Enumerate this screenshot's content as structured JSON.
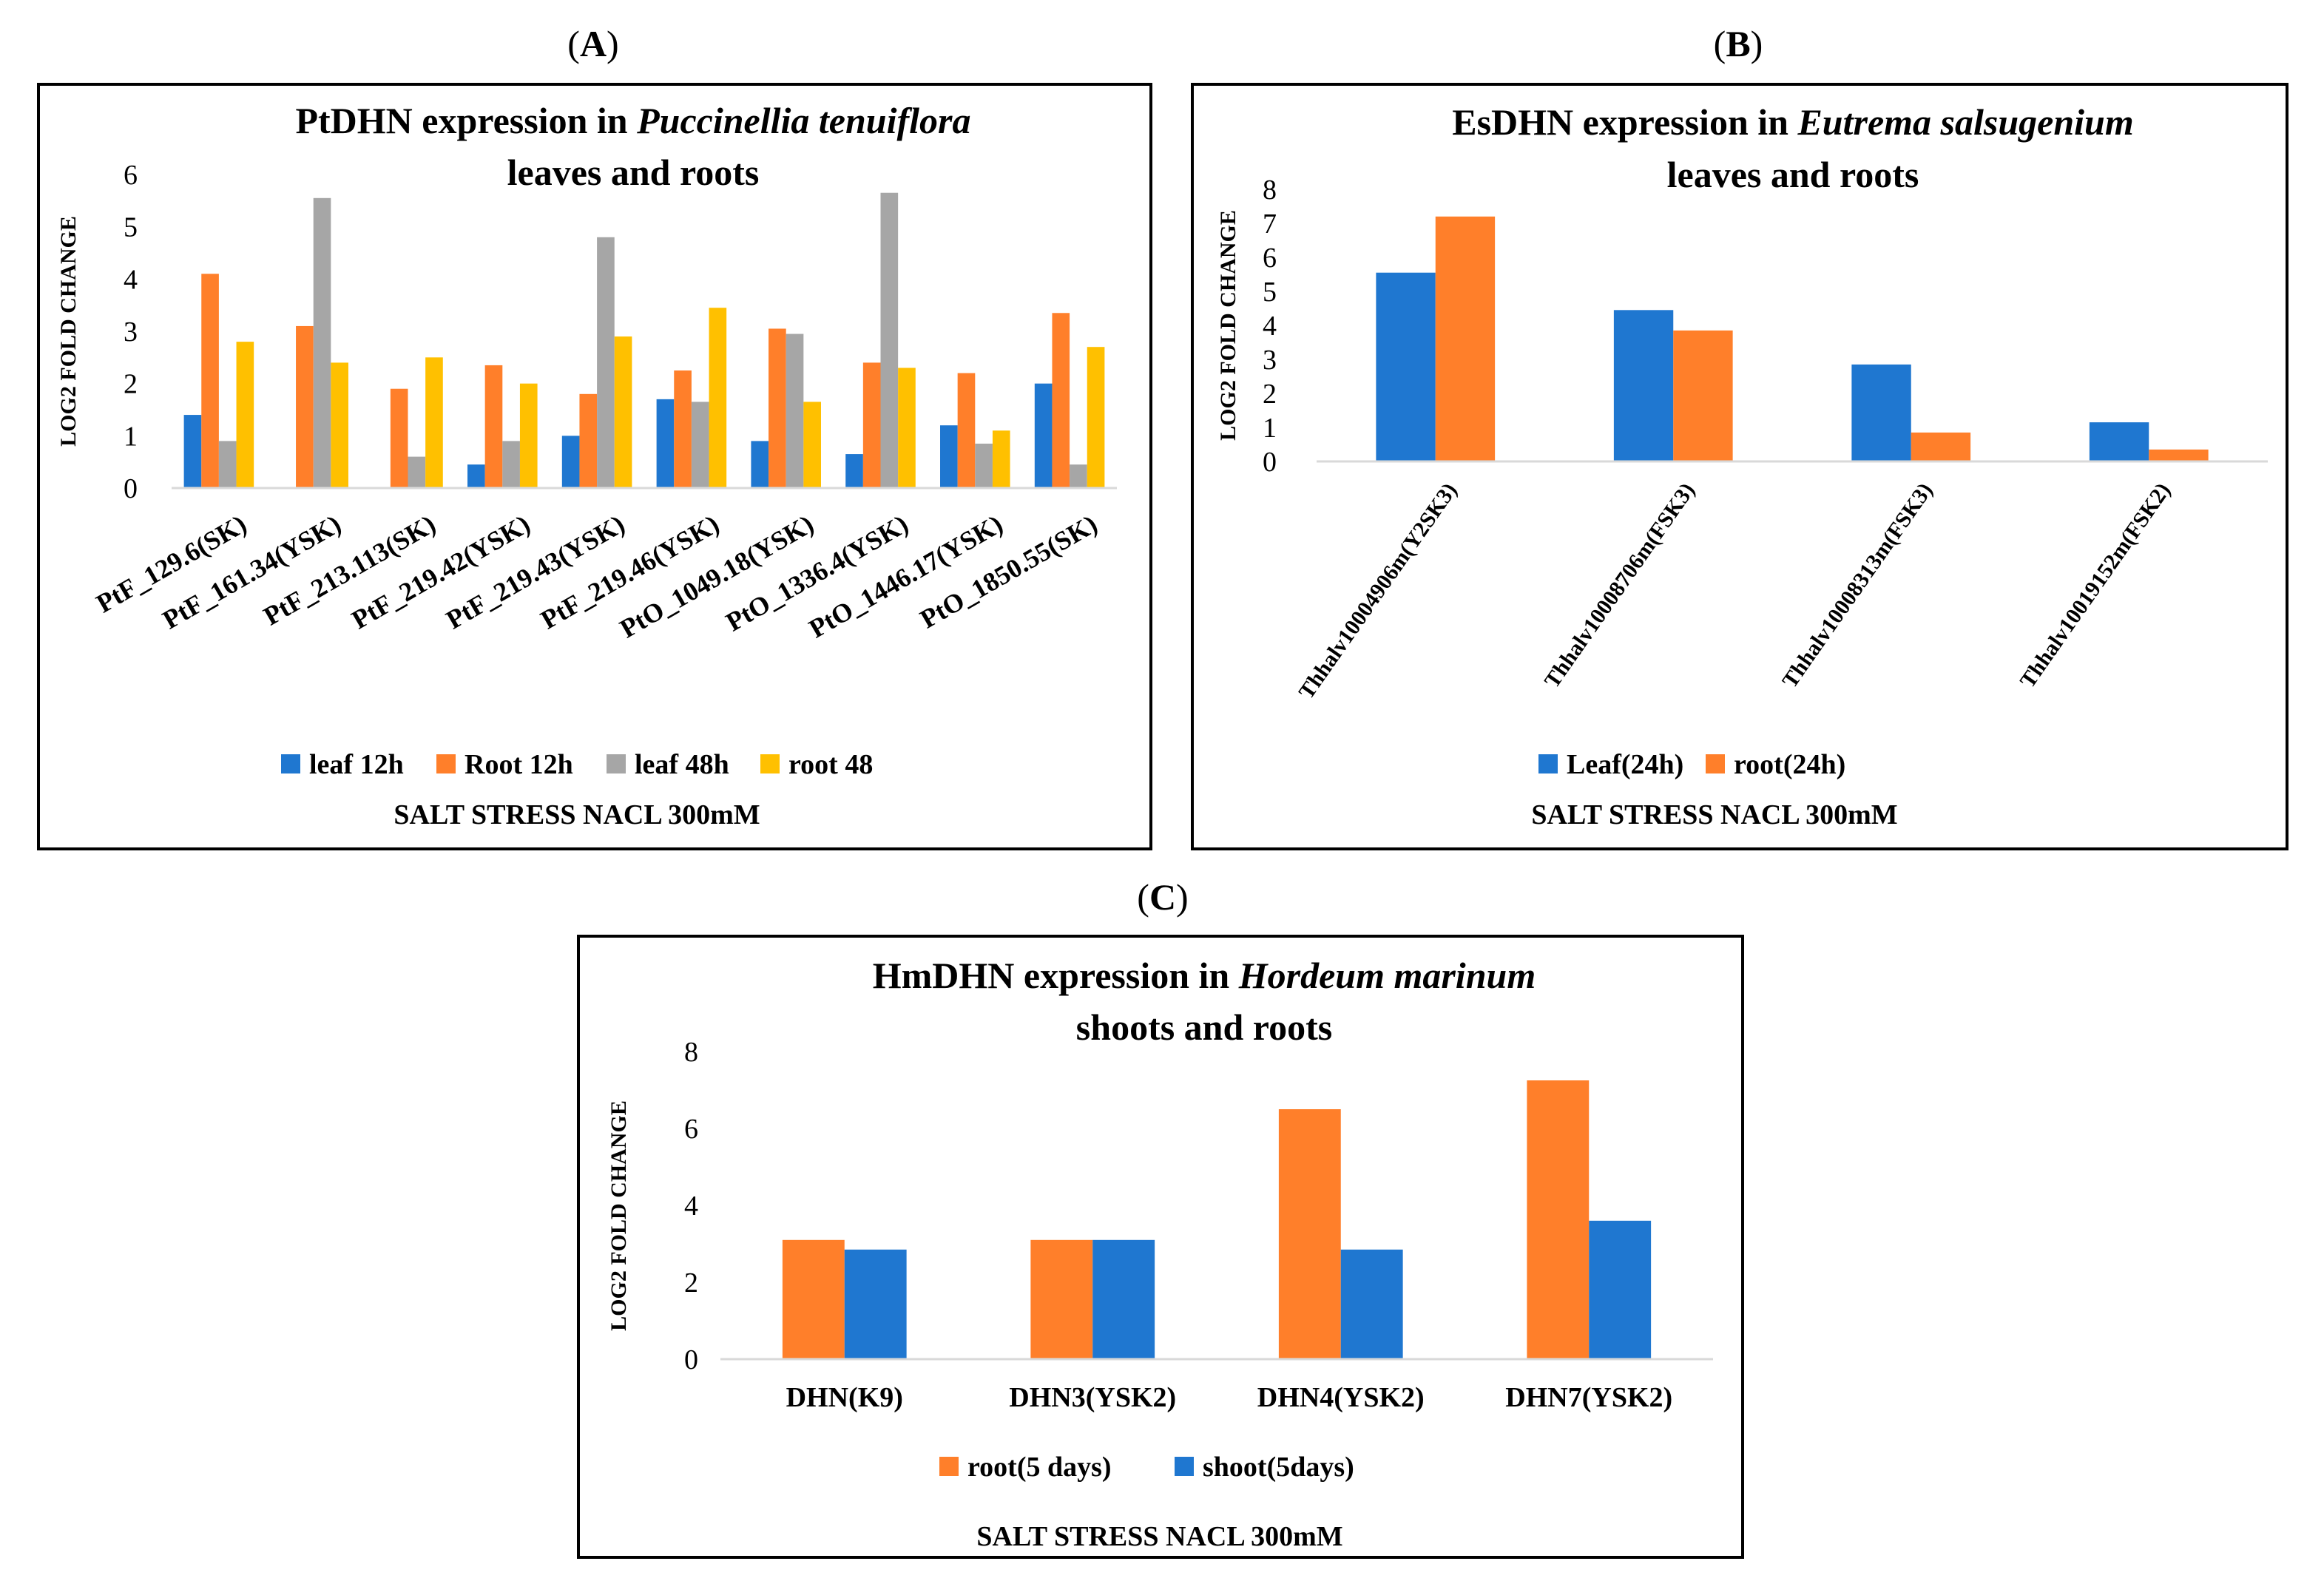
{
  "figure_labels": {
    "a": "A",
    "b": "B",
    "c": "C"
  },
  "colors": {
    "blue": "#1f77d0",
    "orange": "#ff7f2a",
    "gray": "#a6a6a6",
    "yellow": "#ffc000",
    "axis": "#d9d9d9",
    "frame": "#000000"
  },
  "chart_data": [
    {
      "id": "A",
      "type": "bar",
      "title": "PtDHN expression in ",
      "title_species": "Puccinellia tenuiflora",
      "title_line2": "leaves and roots",
      "ylabel": "LOG2 FOLD CHANGE",
      "xlabel": "SALT STRESS NACL 300mM",
      "ylim": [
        0,
        6
      ],
      "yticks": [
        0,
        1,
        2,
        3,
        4,
        5,
        6
      ],
      "categories": [
        "PtF_129.6(SK)",
        "PtF_161.34(YSK)",
        "PtF_213.113(SK)",
        "PtF_219.42(YSK)",
        "PtF_219.43(YSK)",
        "PtF_219.46(YSK)",
        "PtO_1049.18(YSK)",
        "PtO_1336.4(YSK)",
        "PtO_1446.17(YSK)",
        "PtO_1850.55(SK)"
      ],
      "series": [
        {
          "name": "leaf 12h",
          "color": "#1f77d0",
          "values": [
            1.4,
            0,
            0,
            0.45,
            1.0,
            1.7,
            0.9,
            0.65,
            1.2,
            2.0
          ]
        },
        {
          "name": "Root 12h",
          "color": "#ff7f2a",
          "values": [
            4.1,
            3.1,
            1.9,
            2.35,
            1.8,
            2.25,
            3.05,
            2.4,
            2.2,
            3.35
          ]
        },
        {
          "name": "leaf 48h",
          "color": "#a6a6a6",
          "values": [
            0.9,
            5.55,
            0.6,
            0.9,
            4.8,
            1.65,
            2.95,
            5.65,
            0.85,
            0.45
          ]
        },
        {
          "name": "root 48",
          "color": "#ffc000",
          "values": [
            2.8,
            2.4,
            2.5,
            2.0,
            2.9,
            3.45,
            1.65,
            2.3,
            1.1,
            2.7
          ]
        }
      ]
    },
    {
      "id": "B",
      "type": "bar",
      "title": "EsDHN expression in ",
      "title_species": "Eutrema salsugenium",
      "title_line2": "leaves and roots",
      "ylabel": "LOG2 FOLD CHANGE",
      "xlabel": "SALT STRESS NACL 300mM",
      "ylim": [
        0,
        8
      ],
      "yticks": [
        0,
        1,
        2,
        3,
        4,
        5,
        6,
        7,
        8
      ],
      "categories": [
        "Thhalv10004906m(Y2SK3)",
        "Thhalv10008706m(FSK3)",
        "Thhalv10008313m(FSK3)",
        "Thhalv10019152m(FSK2)"
      ],
      "series": [
        {
          "name": "Leaf(24h)",
          "color": "#1f77d0",
          "values": [
            5.55,
            4.45,
            2.85,
            1.15
          ]
        },
        {
          "name": "root(24h)",
          "color": "#ff7f2a",
          "values": [
            7.2,
            3.85,
            0.85,
            0.35
          ]
        }
      ]
    },
    {
      "id": "C",
      "type": "bar",
      "title": "HmDHN expression in ",
      "title_species": "Hordeum marinum",
      "title_line2": "shoots and roots",
      "ylabel": "LOG2 FOLD CHANGE",
      "xlabel": "SALT STRESS NACL 300mM",
      "ylim": [
        0,
        8
      ],
      "yticks": [
        0,
        2,
        4,
        6,
        8
      ],
      "categories": [
        "DHN(K9)",
        "DHN3(YSK2)",
        "DHN4(YSK2)",
        "DHN7(YSK2)"
      ],
      "series": [
        {
          "name": "root(5 days)",
          "color": "#ff7f2a",
          "values": [
            3.1,
            3.1,
            6.5,
            7.25
          ]
        },
        {
          "name": "shoot(5days)",
          "color": "#1f77d0",
          "values": [
            2.85,
            3.1,
            2.85,
            3.6
          ]
        }
      ]
    }
  ]
}
